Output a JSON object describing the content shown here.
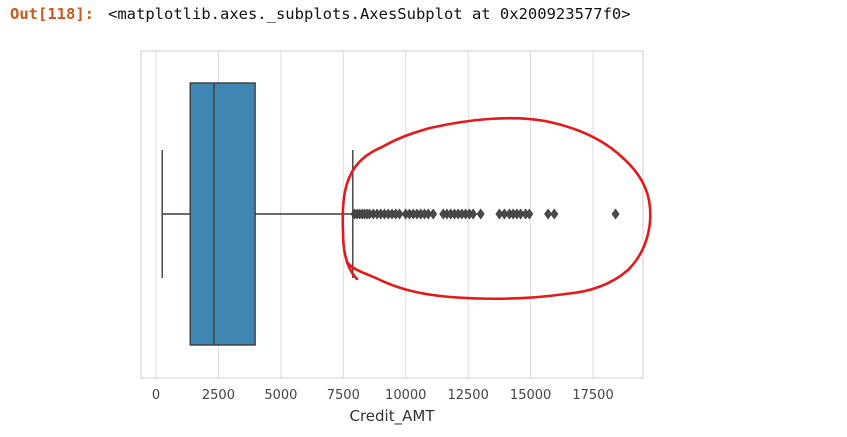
{
  "output": {
    "prompt": "Out[118]:",
    "text": "<matplotlib.axes._subplots.AxesSubplot at 0x200923577f0>"
  },
  "chart_data": {
    "type": "box",
    "orientation": "horizontal",
    "xlabel": "Credit_AMT",
    "xlim": [
      -600,
      19500
    ],
    "xticks": [
      0,
      2500,
      5000,
      7500,
      10000,
      12500,
      15000,
      17500
    ],
    "grid": true,
    "box": {
      "whisker_low": 250,
      "q1": 1370,
      "median": 2320,
      "q3": 3970,
      "whisker_high": 7880
    },
    "outliers": [
      7950,
      8050,
      8150,
      8250,
      8350,
      8450,
      8550,
      8700,
      8850,
      9000,
      9150,
      9300,
      9450,
      9600,
      9750,
      10000,
      10150,
      10300,
      10450,
      10600,
      10750,
      10900,
      11100,
      11500,
      11650,
      11800,
      11950,
      12100,
      12250,
      12400,
      12550,
      12700,
      13000,
      13750,
      13950,
      14150,
      14300,
      14450,
      14600,
      14800,
      14950,
      15700,
      15950,
      18400
    ],
    "colors": {
      "box_fill": "#3f86b3",
      "box_edge": "#3d3d3d",
      "grid": "#dcdcdc",
      "annotation": "#e41a1a"
    }
  }
}
